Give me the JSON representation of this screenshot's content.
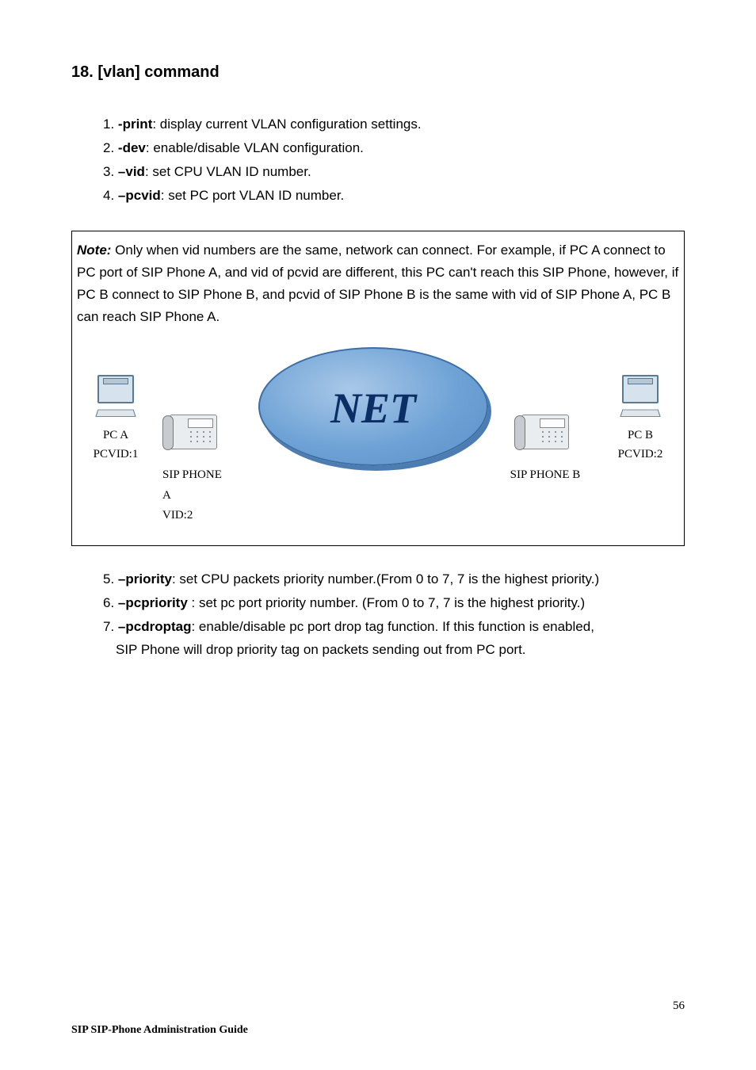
{
  "heading": "18. [vlan] command",
  "list1": [
    {
      "num": "1.",
      "opt": "-print",
      "desc": ": display current VLAN configuration settings."
    },
    {
      "num": "2.",
      "opt": "-dev",
      "desc": ": enable/disable VLAN configuration."
    },
    {
      "num": "3.",
      "opt": "–vid",
      "desc": ": set CPU VLAN ID number."
    },
    {
      "num": "4.",
      "opt": "–pcvid",
      "desc": ": set PC port VLAN ID number."
    }
  ],
  "note": {
    "label": "Note:",
    "text": " Only when vid numbers are the same, network can connect. For example, if PC A connect to PC port of SIP Phone A, and vid of pcvid are different, this PC can't reach this SIP Phone, however, if PC B connect to SIP Phone B, and pcvid of SIP Phone B is the same with vid of SIP Phone A, PC B can reach SIP Phone A."
  },
  "diagram": {
    "net_label": "NET",
    "net_fill_start": "#a9c8e8",
    "net_fill_end": "#5a8fc8",
    "net_border": "#3b6ea5",
    "net_text_color": "#0b2e66",
    "pc_a": {
      "name": "PC A",
      "vid": "PCVID:1"
    },
    "pc_b": {
      "name": "PC B",
      "vid": "PCVID:2"
    },
    "phone_a": {
      "name": "SIP PHONE A",
      "vid": "VID:2"
    },
    "phone_b": {
      "name": "SIP PHONE B"
    }
  },
  "list2": [
    {
      "num": "5.",
      "opt": "–priority",
      "desc": ": set CPU packets priority number.(From 0 to 7, 7 is the highest priority.)"
    },
    {
      "num": "6.",
      "opt": "–pcpriority",
      "desc": " : set pc port priority number. (From 0 to 7, 7 is the highest priority.)"
    },
    {
      "num": "7.",
      "opt": "–pcdroptag",
      "desc": ":   enable/disable pc port drop tag function. If this function is enabled,",
      "cont": "SIP Phone will drop priority tag on packets sending out from PC port."
    }
  ],
  "footer": {
    "page": "56",
    "guide": "SIP SIP-Phone   Administration Guide"
  }
}
